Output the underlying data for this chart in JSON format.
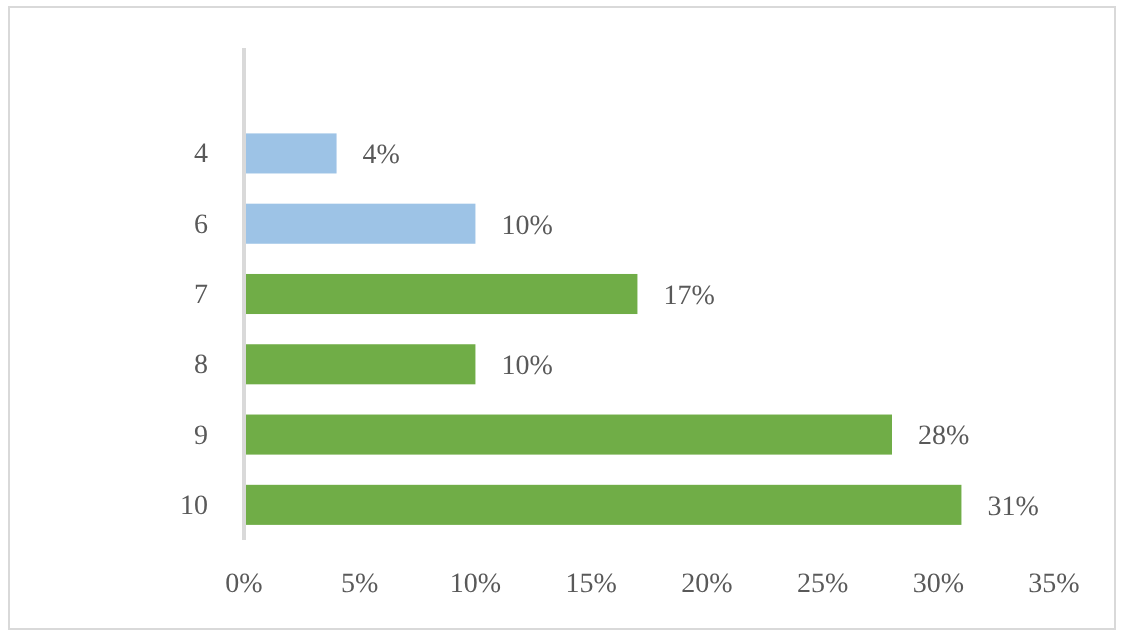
{
  "chart_data": {
    "type": "bar",
    "orientation": "horizontal",
    "categories": [
      null,
      "4",
      "6",
      "7",
      "8",
      "9",
      "10"
    ],
    "values": [
      null,
      4,
      10,
      17,
      10,
      28,
      31
    ],
    "colors": [
      null,
      "#9dc3e6",
      "#9dc3e6",
      "#70ad47",
      "#70ad47",
      "#70ad47",
      "#70ad47"
    ],
    "value_labels": [
      null,
      "4%",
      "10%",
      "17%",
      "10%",
      "28%",
      "31%"
    ],
    "xlim": [
      0,
      35
    ],
    "xticks": [
      {
        "value": 0,
        "label": "0%"
      },
      {
        "value": 5,
        "label": "5%"
      },
      {
        "value": 10,
        "label": "10%"
      },
      {
        "value": 15,
        "label": "15%"
      },
      {
        "value": 20,
        "label": "20%"
      },
      {
        "value": 25,
        "label": "25%"
      },
      {
        "value": 30,
        "label": "30%"
      },
      {
        "value": 35,
        "label": "35%"
      }
    ],
    "grid": false
  }
}
